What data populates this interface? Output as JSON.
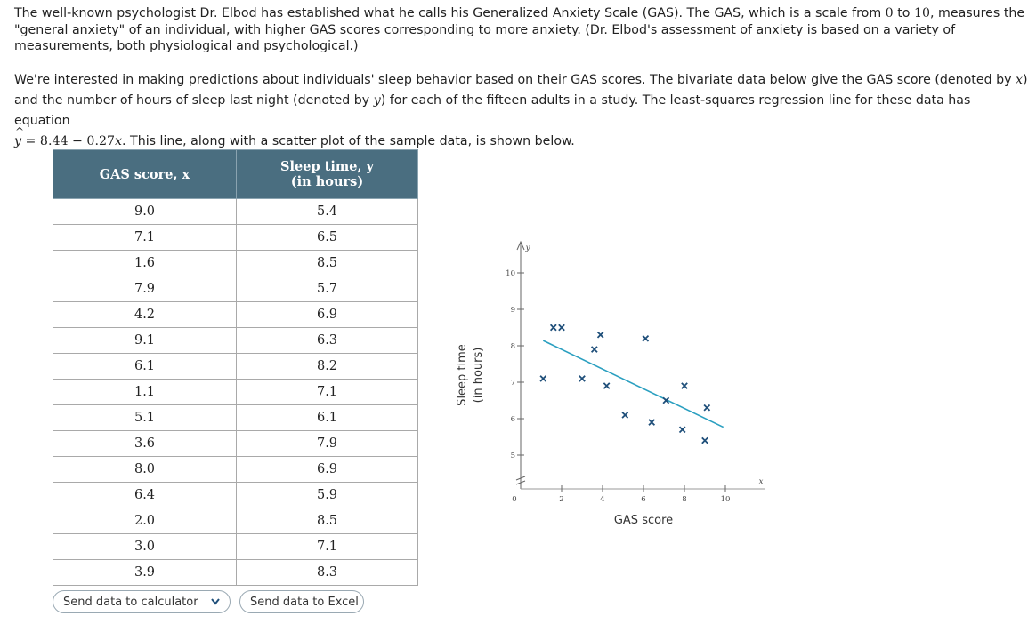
{
  "intro": {
    "p1_a": "The well-known psychologist Dr. Elbod has established what he calls his Generalized Anxiety Scale (GAS). The GAS, which is a scale from ",
    "p1_zero": "0",
    "p1_b": " to ",
    "p1_ten": "10",
    "p1_c": ", measures the \"general anxiety\" of an individual, with higher GAS scores corresponding to more anxiety. (Dr. Elbod's assessment of anxiety is based on a variety of measurements, both physiological and psychological.)",
    "p2_a": "We're interested in making predictions about individuals' sleep behavior based on their GAS scores. The bivariate data below give the GAS score (denoted by ",
    "p2_x": "x",
    "p2_b": ") and the number of hours of sleep last night (denoted by ",
    "p2_y": "y",
    "p2_c": ") for each of the fifteen adults in a study. The least-squares regression line for these data has equation ",
    "eq_y": "y",
    "eq_rhs": " = 8.44 − 0.27",
    "eq_x": "x",
    "p2_d": ". This line, along with a scatter plot of the sample data, is shown below."
  },
  "table": {
    "col1_header": "GAS score, x",
    "col2_header_line1": "Sleep time, y",
    "col2_header_line2": "(in hours)",
    "rows": [
      [
        "9.0",
        "5.4"
      ],
      [
        "7.1",
        "6.5"
      ],
      [
        "1.6",
        "8.5"
      ],
      [
        "7.9",
        "5.7"
      ],
      [
        "4.2",
        "6.9"
      ],
      [
        "9.1",
        "6.3"
      ],
      [
        "6.1",
        "8.2"
      ],
      [
        "1.1",
        "7.1"
      ],
      [
        "5.1",
        "6.1"
      ],
      [
        "3.6",
        "7.9"
      ],
      [
        "8.0",
        "6.9"
      ],
      [
        "6.4",
        "5.9"
      ],
      [
        "2.0",
        "8.5"
      ],
      [
        "3.0",
        "7.1"
      ],
      [
        "3.9",
        "8.3"
      ]
    ]
  },
  "buttons": {
    "calculator_label": "Send data to calculator",
    "excel_label": "Send data to Excel",
    "calculator_icon": "chevron-down-icon"
  },
  "chart_data": {
    "type": "scatter",
    "xlabel": "GAS score",
    "ylabel_line1": "Sleep time",
    "ylabel_line2": "(in hours)",
    "x_axis_symbol": "x",
    "y_axis_symbol": "y",
    "xlim": [
      0,
      11
    ],
    "ylim": [
      5,
      10.5
    ],
    "x_ticks": [
      2,
      4,
      6,
      8,
      10
    ],
    "y_ticks": [
      5,
      6,
      7,
      8,
      9,
      10
    ],
    "origin_label": "0",
    "y_axis_break": true,
    "marker_color": "#1f4f7a",
    "line_color": "#2a9fc0",
    "points": [
      [
        9.0,
        5.4
      ],
      [
        7.1,
        6.5
      ],
      [
        1.6,
        8.5
      ],
      [
        7.9,
        5.7
      ],
      [
        4.2,
        6.9
      ],
      [
        9.1,
        6.3
      ],
      [
        6.1,
        8.2
      ],
      [
        1.1,
        7.1
      ],
      [
        5.1,
        6.1
      ],
      [
        3.6,
        7.9
      ],
      [
        8.0,
        6.9
      ],
      [
        6.4,
        5.9
      ],
      [
        2.0,
        8.5
      ],
      [
        3.0,
        7.1
      ],
      [
        3.9,
        8.3
      ]
    ],
    "regression": {
      "intercept": 8.44,
      "slope": -0.27,
      "x_range": [
        1.1,
        9.9
      ]
    }
  }
}
